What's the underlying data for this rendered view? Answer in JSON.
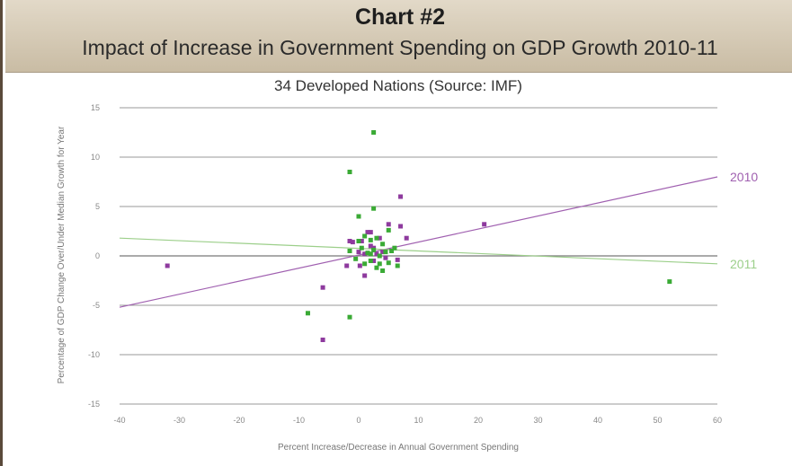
{
  "header": {
    "chart_number": "Chart #2",
    "title": "Impact of Increase in Government Spending on GDP Growth 2010-11"
  },
  "chart_data": {
    "type": "scatter",
    "subtitle": "34 Developed Nations (Source: IMF)",
    "xlabel": "Percent Increase/Decrease in Annual Government Spending",
    "ylabel": "Percentage of GDP Change Over/Under Median Growth for Year",
    "xlim": [
      -40,
      60
    ],
    "ylim": [
      -15,
      15
    ],
    "xticks": [
      -40,
      -30,
      -20,
      -10,
      0,
      10,
      20,
      30,
      40,
      50,
      60
    ],
    "yticks": [
      -15,
      -10,
      -5,
      0,
      5,
      10,
      15
    ],
    "grid": true,
    "series": [
      {
        "name": "2010",
        "color": "#8e3a9e",
        "points": [
          [
            -32,
            -1
          ],
          [
            -6,
            -3.2
          ],
          [
            -6,
            -8.5
          ],
          [
            -2,
            -1
          ],
          [
            -1.5,
            1.5
          ],
          [
            -1,
            1.4
          ],
          [
            0,
            0.4
          ],
          [
            0.2,
            -1
          ],
          [
            0.5,
            1.5
          ],
          [
            1,
            -2
          ],
          [
            1,
            0.2
          ],
          [
            1.5,
            2.4
          ],
          [
            2,
            2.4
          ],
          [
            2,
            1
          ],
          [
            2.5,
            -0.5
          ],
          [
            2.5,
            0.8
          ],
          [
            3,
            0.2
          ],
          [
            3.5,
            1.8
          ],
          [
            4,
            0.4
          ],
          [
            4.5,
            -0.2
          ],
          [
            5,
            3.2
          ],
          [
            6.5,
            -0.4
          ],
          [
            7,
            3
          ],
          [
            7,
            6
          ],
          [
            8,
            1.8
          ],
          [
            21,
            3.2
          ]
        ]
      },
      {
        "name": "2011",
        "color": "#3aaa35",
        "points": [
          [
            2.5,
            12.5
          ],
          [
            -1.5,
            8.5
          ],
          [
            -8.5,
            -5.8
          ],
          [
            -1.5,
            -6.2
          ],
          [
            0,
            4
          ],
          [
            2.5,
            4.8
          ],
          [
            52,
            -2.6
          ],
          [
            -1.5,
            0.5
          ],
          [
            0,
            1.5
          ],
          [
            0.5,
            0.8
          ],
          [
            1,
            -0.8
          ],
          [
            1.5,
            0.3
          ],
          [
            2,
            -0.5
          ],
          [
            2,
            1.6
          ],
          [
            2.5,
            0.6
          ],
          [
            3,
            -1.2
          ],
          [
            3,
            1.8
          ],
          [
            3.5,
            -0.8
          ],
          [
            4,
            -1.5
          ],
          [
            4,
            1.2
          ],
          [
            4.5,
            0.4
          ],
          [
            5,
            -0.7
          ],
          [
            5,
            2.6
          ],
          [
            5.5,
            0.5
          ],
          [
            6,
            0.8
          ],
          [
            6.5,
            -1
          ],
          [
            1,
            2
          ],
          [
            2,
            0.2
          ],
          [
            3.5,
            0
          ],
          [
            -0.5,
            -0.3
          ]
        ]
      }
    ],
    "trendlines": [
      {
        "name": "2010",
        "label": "2010",
        "color": "#a060b0",
        "from": [
          -40,
          -5.2
        ],
        "to": [
          60,
          8
        ]
      },
      {
        "name": "2011",
        "label": "2011",
        "color": "#9ccf8a",
        "from": [
          -40,
          1.8
        ],
        "to": [
          60,
          -0.8
        ]
      }
    ]
  }
}
